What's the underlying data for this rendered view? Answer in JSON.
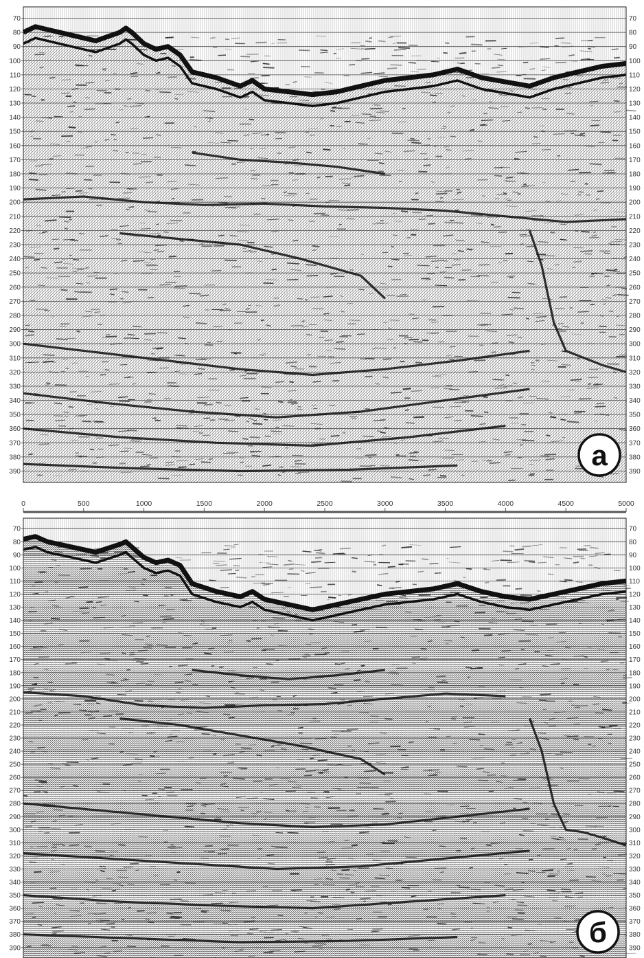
{
  "colors": {
    "ink": "#111111",
    "grid": "#444444",
    "background": "#ffffff",
    "label": "#333333"
  },
  "panels": [
    {
      "id": "a",
      "marker": "a",
      "y_ticks": [
        "70",
        "80",
        "90",
        "100",
        "110",
        "120",
        "130",
        "140",
        "150",
        "160",
        "170",
        "180",
        "190",
        "200",
        "210",
        "220",
        "230",
        "240",
        "250",
        "260",
        "270",
        "280",
        "290",
        "300",
        "310",
        "320",
        "330",
        "340",
        "350",
        "360",
        "370",
        "380",
        "390"
      ],
      "seabed_horizon": [
        [
          0,
          80
        ],
        [
          100,
          76
        ],
        [
          200,
          78
        ],
        [
          400,
          82
        ],
        [
          600,
          86
        ],
        [
          800,
          80
        ],
        [
          850,
          77
        ],
        [
          900,
          80
        ],
        [
          1000,
          88
        ],
        [
          1100,
          92
        ],
        [
          1200,
          90
        ],
        [
          1300,
          96
        ],
        [
          1400,
          108
        ],
        [
          1600,
          112
        ],
        [
          1800,
          118
        ],
        [
          1900,
          114
        ],
        [
          2000,
          120
        ],
        [
          2200,
          122
        ],
        [
          2400,
          124
        ],
        [
          2600,
          122
        ],
        [
          2800,
          118
        ],
        [
          3000,
          114
        ],
        [
          3200,
          112
        ],
        [
          3400,
          110
        ],
        [
          3600,
          106
        ],
        [
          3800,
          112
        ],
        [
          4000,
          115
        ],
        [
          4200,
          118
        ],
        [
          4400,
          112
        ],
        [
          4600,
          108
        ],
        [
          4800,
          104
        ],
        [
          5000,
          102
        ]
      ],
      "reflector_horizons": [
        [
          [
            0,
            198
          ],
          [
            500,
            196
          ],
          [
            1000,
            200
          ],
          [
            1500,
            202
          ],
          [
            2000,
            201
          ],
          [
            2500,
            203
          ],
          [
            3000,
            204
          ],
          [
            3500,
            206
          ],
          [
            4000,
            210
          ],
          [
            4500,
            214
          ],
          [
            5000,
            212
          ]
        ],
        [
          [
            1400,
            165
          ],
          [
            1800,
            170
          ],
          [
            2200,
            172
          ],
          [
            2600,
            175
          ],
          [
            3000,
            180
          ]
        ],
        [
          [
            800,
            222
          ],
          [
            1300,
            226
          ],
          [
            1800,
            230
          ],
          [
            2300,
            240
          ],
          [
            2800,
            252
          ],
          [
            3000,
            268
          ]
        ],
        [
          [
            4200,
            220
          ],
          [
            4300,
            245
          ],
          [
            4400,
            285
          ],
          [
            4500,
            305
          ],
          [
            4650,
            310
          ],
          [
            4800,
            315
          ],
          [
            5000,
            320
          ]
        ],
        [
          [
            0,
            300
          ],
          [
            600,
            306
          ],
          [
            1200,
            312
          ],
          [
            1800,
            318
          ],
          [
            2400,
            322
          ],
          [
            3000,
            318
          ],
          [
            3600,
            312
          ],
          [
            4200,
            305
          ]
        ],
        [
          [
            0,
            335
          ],
          [
            700,
            342
          ],
          [
            1400,
            348
          ],
          [
            2100,
            352
          ],
          [
            2800,
            348
          ],
          [
            3500,
            340
          ],
          [
            4200,
            332
          ]
        ],
        [
          [
            0,
            360
          ],
          [
            800,
            366
          ],
          [
            1600,
            370
          ],
          [
            2400,
            372
          ],
          [
            3200,
            366
          ],
          [
            4000,
            358
          ]
        ],
        [
          [
            0,
            385
          ],
          [
            900,
            388
          ],
          [
            1800,
            390
          ],
          [
            2700,
            389
          ],
          [
            3600,
            386
          ]
        ]
      ]
    },
    {
      "id": "b",
      "marker": "б",
      "y_ticks": [
        "70",
        "80",
        "90",
        "100",
        "110",
        "120",
        "130",
        "140",
        "150",
        "160",
        "170",
        "180",
        "190",
        "200",
        "210",
        "220",
        "230",
        "240",
        "250",
        "260",
        "270",
        "280",
        "290",
        "300",
        "310",
        "320",
        "330",
        "340",
        "350",
        "360",
        "370",
        "380",
        "390"
      ],
      "seabed_horizon": [
        [
          0,
          78
        ],
        [
          100,
          76
        ],
        [
          200,
          80
        ],
        [
          400,
          84
        ],
        [
          600,
          88
        ],
        [
          800,
          82
        ],
        [
          850,
          80
        ],
        [
          900,
          84
        ],
        [
          1000,
          92
        ],
        [
          1100,
          96
        ],
        [
          1200,
          94
        ],
        [
          1300,
          98
        ],
        [
          1400,
          112
        ],
        [
          1600,
          118
        ],
        [
          1800,
          122
        ],
        [
          1900,
          118
        ],
        [
          2000,
          124
        ],
        [
          2200,
          128
        ],
        [
          2400,
          132
        ],
        [
          2600,
          128
        ],
        [
          2800,
          124
        ],
        [
          3000,
          120
        ],
        [
          3200,
          118
        ],
        [
          3400,
          116
        ],
        [
          3600,
          112
        ],
        [
          3800,
          118
        ],
        [
          4000,
          122
        ],
        [
          4200,
          124
        ],
        [
          4400,
          120
        ],
        [
          4600,
          116
        ],
        [
          4800,
          112
        ],
        [
          5000,
          110
        ]
      ],
      "reflector_horizons": [
        [
          [
            0,
            195
          ],
          [
            500,
            198
          ],
          [
            1000,
            205
          ],
          [
            1500,
            207
          ],
          [
            2000,
            205
          ],
          [
            2500,
            204
          ],
          [
            3000,
            200
          ],
          [
            3500,
            196
          ],
          [
            4000,
            198
          ]
        ],
        [
          [
            1400,
            178
          ],
          [
            1800,
            182
          ],
          [
            2200,
            185
          ],
          [
            2600,
            182
          ],
          [
            3000,
            178
          ]
        ],
        [
          [
            800,
            215
          ],
          [
            1300,
            220
          ],
          [
            1800,
            228
          ],
          [
            2300,
            236
          ],
          [
            2800,
            246
          ],
          [
            3000,
            258
          ]
        ],
        [
          [
            4200,
            215
          ],
          [
            4300,
            240
          ],
          [
            4400,
            280
          ],
          [
            4500,
            300
          ],
          [
            4650,
            302
          ],
          [
            4800,
            306
          ],
          [
            5000,
            312
          ]
        ],
        [
          [
            0,
            280
          ],
          [
            600,
            285
          ],
          [
            1200,
            290
          ],
          [
            1800,
            295
          ],
          [
            2400,
            298
          ],
          [
            3000,
            296
          ],
          [
            3600,
            290
          ],
          [
            4200,
            284
          ]
        ],
        [
          [
            0,
            318
          ],
          [
            700,
            322
          ],
          [
            1400,
            326
          ],
          [
            2100,
            330
          ],
          [
            2800,
            328
          ],
          [
            3500,
            322
          ],
          [
            4200,
            316
          ]
        ],
        [
          [
            0,
            350
          ],
          [
            800,
            355
          ],
          [
            1600,
            358
          ],
          [
            2400,
            360
          ],
          [
            3200,
            355
          ],
          [
            4000,
            350
          ]
        ],
        [
          [
            0,
            380
          ],
          [
            900,
            383
          ],
          [
            1800,
            386
          ],
          [
            2700,
            385
          ],
          [
            3600,
            382
          ]
        ]
      ]
    }
  ],
  "x_axis": {
    "ticks": [
      "0",
      "500",
      "1000",
      "1500",
      "2000",
      "2500",
      "3000",
      "3500",
      "4000",
      "4500",
      "5000"
    ],
    "min": 0,
    "max": 5000
  },
  "y_axis": {
    "min": 62,
    "max": 398
  }
}
